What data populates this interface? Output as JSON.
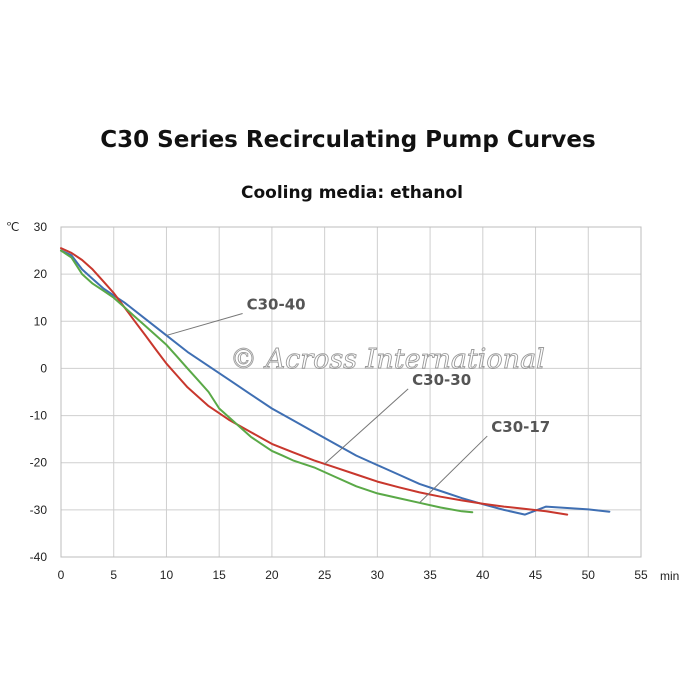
{
  "watermark": "© Across International",
  "chart_data": {
    "type": "line",
    "title": "C30 Series Recirculating Pump Curves",
    "subtitle": "Cooling media: ethanol",
    "xlabel": "min",
    "ylabel": "℃",
    "xlim": [
      0,
      55
    ],
    "ylim": [
      -40,
      30
    ],
    "xticks": [
      0,
      5,
      10,
      15,
      20,
      25,
      30,
      35,
      40,
      45,
      50,
      55
    ],
    "yticks": [
      30,
      20,
      10,
      0,
      -10,
      -20,
      -30,
      -40
    ],
    "grid": true,
    "series": [
      {
        "name": "C30-40",
        "color": "#3f6fb3",
        "x": [
          0,
          1,
          2,
          3,
          4,
          5,
          6,
          8,
          10,
          12,
          14,
          16,
          18,
          20,
          22,
          24,
          26,
          28,
          30,
          32,
          34,
          36,
          38,
          40,
          42,
          44,
          46,
          48,
          50,
          52
        ],
        "y": [
          25,
          24,
          21,
          19,
          17,
          15.5,
          14,
          10.5,
          7,
          3.5,
          0.5,
          -2.5,
          -5.5,
          -8.5,
          -11,
          -13.5,
          -16,
          -18.5,
          -20.5,
          -22.5,
          -24.5,
          -26,
          -27.5,
          -28.8,
          -30,
          -31,
          -29.3,
          -29.6,
          -29.9,
          -30.4
        ]
      },
      {
        "name": "C30-30",
        "color": "#c8372d",
        "x": [
          0,
          1,
          2,
          3,
          4,
          5,
          6,
          7,
          8,
          9,
          10,
          11,
          12,
          13,
          14,
          15,
          16,
          18,
          20,
          22,
          24,
          26,
          28,
          30,
          32,
          34,
          36,
          38,
          40,
          42,
          44,
          46,
          48
        ],
        "y": [
          25.5,
          24.5,
          23,
          21,
          18.5,
          16,
          13,
          10,
          7,
          4,
          1,
          -1.5,
          -4,
          -6,
          -8,
          -9.5,
          -11,
          -13.5,
          -16,
          -17.8,
          -19.5,
          -21,
          -22.5,
          -24,
          -25.2,
          -26.3,
          -27.2,
          -28,
          -28.7,
          -29.3,
          -29.8,
          -30.3,
          -31
        ]
      },
      {
        "name": "C30-17",
        "color": "#5aa947",
        "x": [
          0,
          1,
          2,
          3,
          4,
          5,
          6,
          7,
          8,
          9,
          10,
          11,
          12,
          13,
          14,
          15,
          16,
          17,
          18,
          19,
          20,
          21,
          22,
          24,
          26,
          28,
          30,
          32,
          34,
          36,
          38,
          39
        ],
        "y": [
          25,
          23.5,
          20,
          18,
          16.5,
          15,
          13,
          11,
          9,
          7,
          5,
          2.5,
          0,
          -2.5,
          -5,
          -8.5,
          -10.5,
          -12.5,
          -14.5,
          -16,
          -17.5,
          -18.5,
          -19.5,
          -21,
          -23,
          -25,
          -26.5,
          -27.5,
          -28.5,
          -29.5,
          -30.3,
          -30.5
        ]
      }
    ],
    "annotations": [
      {
        "text": "C30-40",
        "series": "C30-40",
        "at_x": 10,
        "label_x": 17.6,
        "label_y": 12.5
      },
      {
        "text": "C30-30",
        "series": "C30-30",
        "at_x": 25,
        "label_x": 33.3,
        "label_y": -3.5
      },
      {
        "text": "C30-17",
        "series": "C30-17",
        "at_x": 34,
        "label_x": 40.8,
        "label_y": -13.5
      }
    ]
  }
}
